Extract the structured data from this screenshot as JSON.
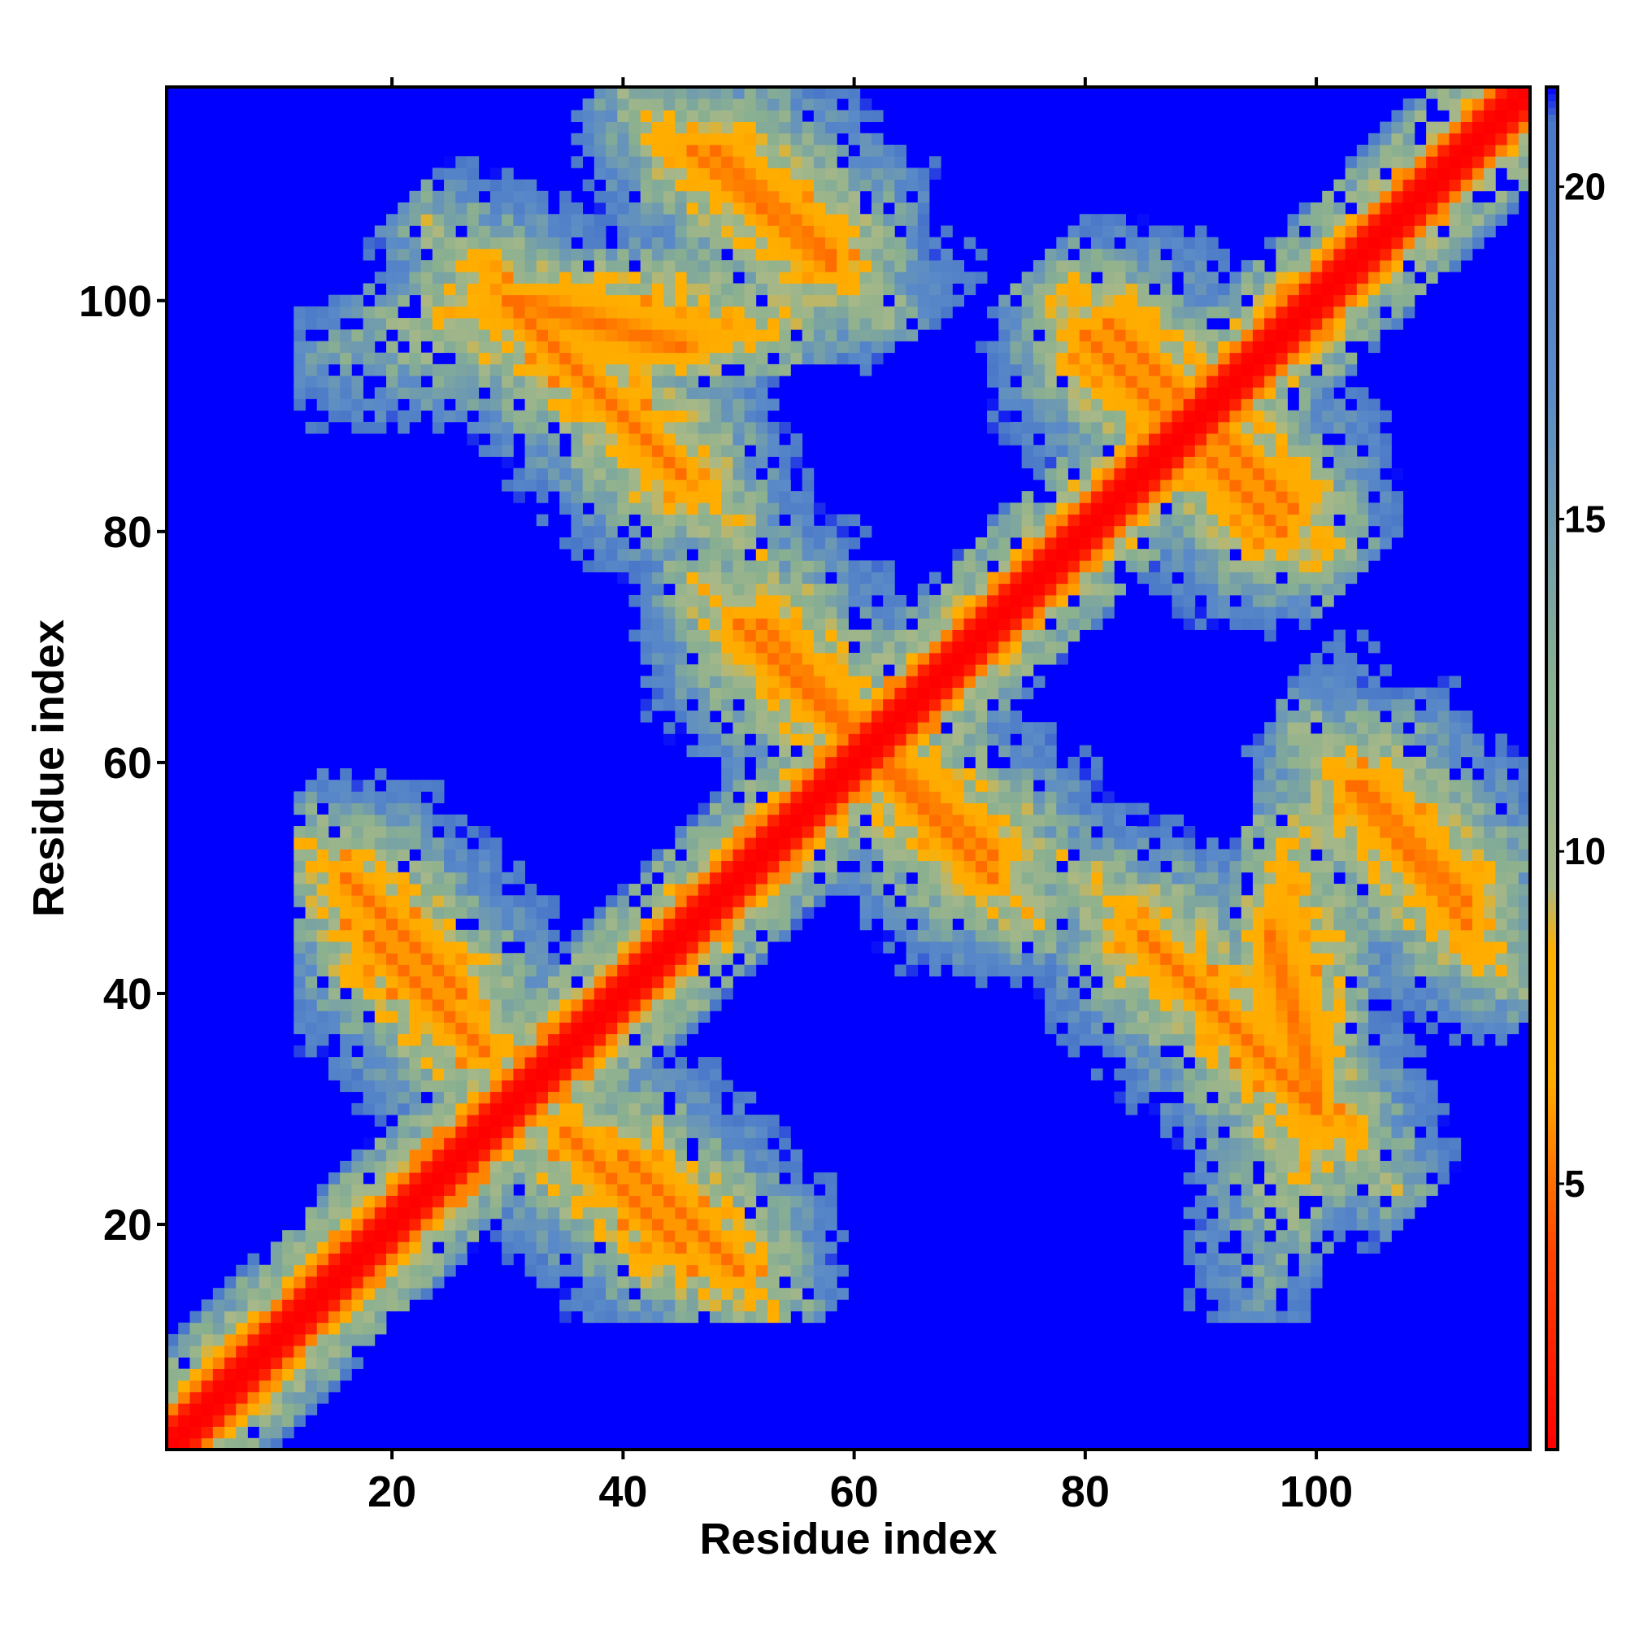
{
  "chart_data": {
    "type": "heatmap",
    "title": "",
    "xlabel": "Residue index",
    "ylabel": "Residue index",
    "n_residues": 118,
    "xlim": [
      1,
      118
    ],
    "ylim": [
      1,
      118
    ],
    "x_ticks": [
      20,
      40,
      60,
      80,
      100
    ],
    "y_ticks": [
      20,
      40,
      60,
      80,
      100
    ],
    "colorbar": {
      "ticks": [
        5,
        10,
        15,
        20
      ],
      "range": [
        1,
        21.5
      ],
      "placement": "right",
      "stops": [
        {
          "value": 1,
          "color": "#ff0000"
        },
        {
          "value": 4,
          "color": "#ff4400"
        },
        {
          "value": 6.5,
          "color": "#ffaa00"
        },
        {
          "value": 8.5,
          "color": "#ffb000"
        },
        {
          "value": 9.5,
          "color": "#a8b888"
        },
        {
          "value": 12.5,
          "color": "#8ab090"
        },
        {
          "value": 17,
          "color": "#5a8ac8"
        },
        {
          "value": 21,
          "color": "#4a78c8"
        },
        {
          "value": 21.5,
          "color": "#0000ff"
        }
      ]
    },
    "cutoff_color": "#0000ff",
    "cutoff_value": 22,
    "structure": {
      "diagonal_band": "distance about 1-2 near diagonal, rising to ~8 at 3 residues",
      "antiparallel_pairs": [
        {
          "i1": 18,
          "i2": 28,
          "j1": 45,
          "j2": 35
        },
        {
          "i1": 40,
          "i2": 50,
          "j1": 26,
          "j2": 16
        },
        {
          "i1": 30,
          "i2": 45,
          "j1": 100,
          "j2": 85
        },
        {
          "i1": 46,
          "i2": 58,
          "j1": 113,
          "j2": 103
        },
        {
          "i1": 52,
          "i2": 60,
          "j1": 72,
          "j2": 63
        },
        {
          "i1": 62,
          "i2": 72,
          "j1": 60,
          "j2": 50
        },
        {
          "i1": 82,
          "i2": 92,
          "j1": 98,
          "j2": 88
        },
        {
          "i1": 88,
          "i2": 97,
          "j1": 89,
          "j2": 80
        },
        {
          "i1": 104,
          "i2": 113,
          "j1": 58,
          "j2": 48
        },
        {
          "i1": 96,
          "i2": 100,
          "j1": 45,
          "j2": 31
        }
      ]
    }
  }
}
